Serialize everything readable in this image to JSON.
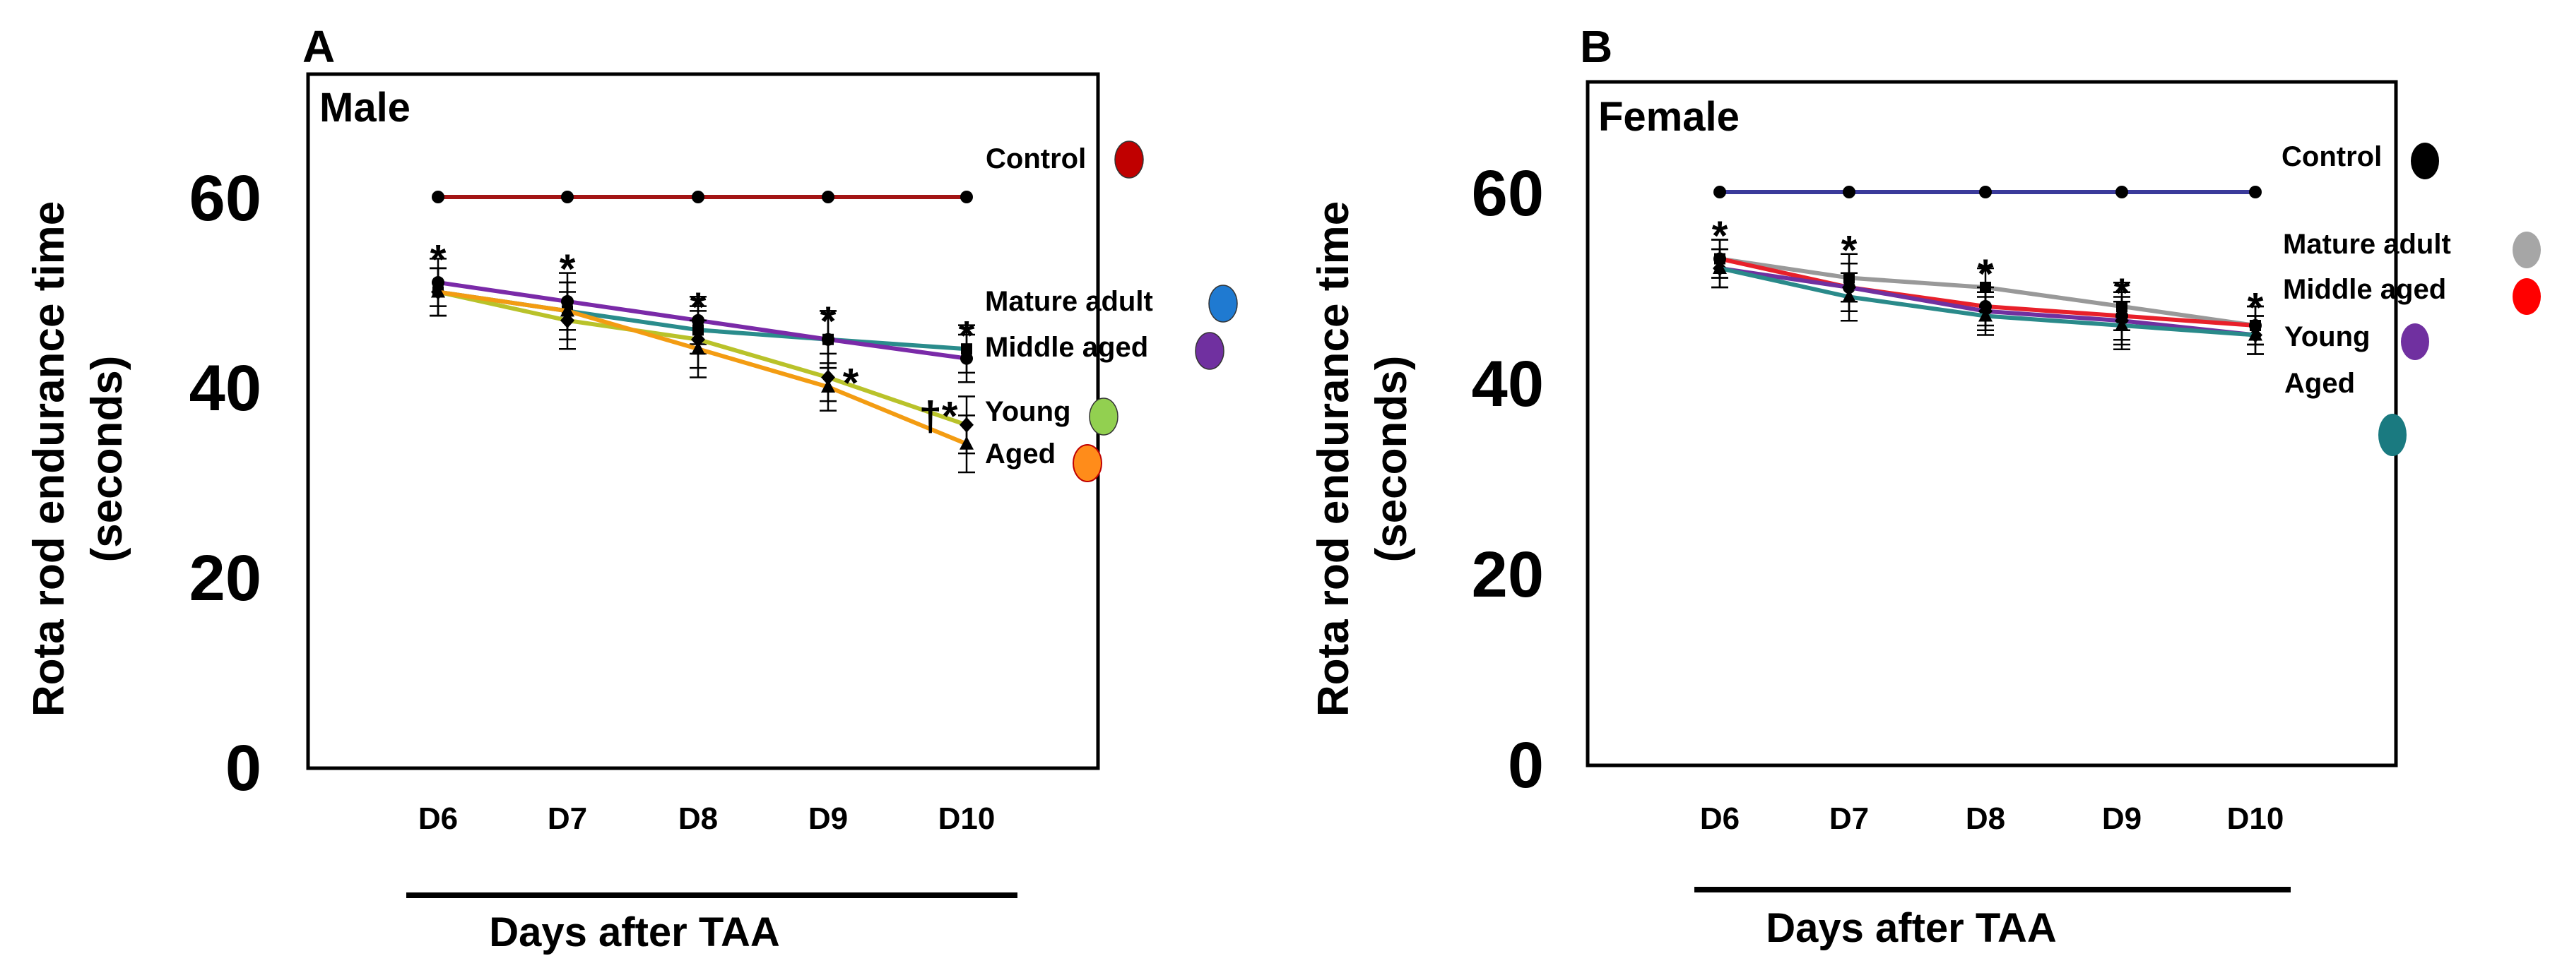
{
  "chart_data": [
    {
      "type": "line",
      "panel": "A",
      "title": "Male",
      "ylabel_line1": "Rota rod endurance time",
      "ylabel_line2": "(seconds)",
      "xlabel": "Days after TAA",
      "categories": [
        "D6",
        "D7",
        "D8",
        "D9",
        "D10"
      ],
      "ylim": [
        0,
        70
      ],
      "yticks": [
        0,
        20,
        40,
        60
      ],
      "series": [
        {
          "name": "Control",
          "values": [
            60,
            60,
            60,
            60,
            60
          ],
          "color": "#a31515",
          "marker_color": "#c00000",
          "error": [
            0,
            0,
            0,
            0,
            0
          ],
          "marker": "circle"
        },
        {
          "name": "Mature adult",
          "values": [
            50,
            48,
            46,
            45,
            44
          ],
          "color": "#2a8c8c",
          "marker_color": "#1f7ad1",
          "error": [
            2.5,
            3,
            2.5,
            3,
            2.5
          ],
          "marker": "square"
        },
        {
          "name": "Middle aged",
          "values": [
            51,
            49,
            47,
            45,
            43
          ],
          "color": "#7a2aa8",
          "marker_color": "#7030a0",
          "error": [
            2.5,
            3,
            2.5,
            3,
            2.5
          ],
          "marker": "circle"
        },
        {
          "name": "Young",
          "values": [
            50,
            47,
            45,
            41,
            36
          ],
          "color": "#b9c22a",
          "marker_color": "#92d050",
          "error": [
            2.5,
            3,
            3,
            2.5,
            3
          ],
          "marker": "diamond"
        },
        {
          "name": "Aged",
          "values": [
            50,
            48,
            44,
            40,
            34
          ],
          "color": "#f39c12",
          "marker_color": "#ff8c1a",
          "error": [
            2.5,
            3,
            3,
            2.5,
            3
          ],
          "marker": "triangle"
        }
      ],
      "annotations": [
        {
          "text": "*",
          "category": "D6",
          "y": 54
        },
        {
          "text": "*",
          "category": "D7",
          "y": 53
        },
        {
          "text": "*",
          "category": "D8",
          "y": 49
        },
        {
          "text": "*",
          "category": "D9",
          "y": 47.5
        },
        {
          "text": "*",
          "category": "D10",
          "y": 46
        },
        {
          "text": "*",
          "category": "D9",
          "y": 41,
          "offset": "right"
        },
        {
          "text": "†*",
          "category": "D10",
          "y": 37.5,
          "offset": "left"
        }
      ]
    },
    {
      "type": "line",
      "panel": "B",
      "title": "Female",
      "ylabel_line1": "Rota rod endurance time",
      "ylabel_line2": "(seconds)",
      "xlabel": "Days after TAA",
      "categories": [
        "D6",
        "D7",
        "D8",
        "D9",
        "D10"
      ],
      "ylim": [
        0,
        70
      ],
      "yticks": [
        0,
        20,
        40,
        60
      ],
      "series": [
        {
          "name": "Control",
          "values": [
            60,
            60,
            60,
            60,
            60
          ],
          "color": "#3a3a9a",
          "marker_color": "#000000",
          "error": [
            0,
            0,
            0,
            0,
            0
          ],
          "marker": "circle"
        },
        {
          "name": "Mature adult",
          "values": [
            53,
            51,
            50,
            48,
            46
          ],
          "color": "#999999",
          "marker_color": "#a6a6a6",
          "error": [
            2,
            2.5,
            2,
            2.5,
            2
          ],
          "marker": "square"
        },
        {
          "name": "Middle aged",
          "values": [
            53,
            50,
            48,
            47,
            46
          ],
          "color": "#e8202a",
          "marker_color": "#ff0000",
          "error": [
            2,
            2.5,
            2,
            2.5,
            2
          ],
          "marker": "circle"
        },
        {
          "name": "Young",
          "values": [
            52,
            50,
            47.5,
            46.5,
            45
          ],
          "color": "#7030a0",
          "marker_color": "#7030a0",
          "error": [
            2,
            2.5,
            2,
            2.5,
            2
          ],
          "marker": "diamond"
        },
        {
          "name": "Aged",
          "values": [
            52,
            49,
            47,
            46,
            45
          ],
          "color": "#2a8a8a",
          "marker_color": "#1a7a80",
          "error": [
            2,
            2.5,
            2,
            2.5,
            2
          ],
          "marker": "triangle"
        }
      ],
      "annotations": [
        {
          "text": "*",
          "category": "D6",
          "y": 56
        },
        {
          "text": "*",
          "category": "D7",
          "y": 54.5
        },
        {
          "text": "*",
          "category": "D8",
          "y": 52
        },
        {
          "text": "*",
          "category": "D9",
          "y": 50
        },
        {
          "text": "*",
          "category": "D10",
          "y": 48.5
        }
      ]
    }
  ]
}
